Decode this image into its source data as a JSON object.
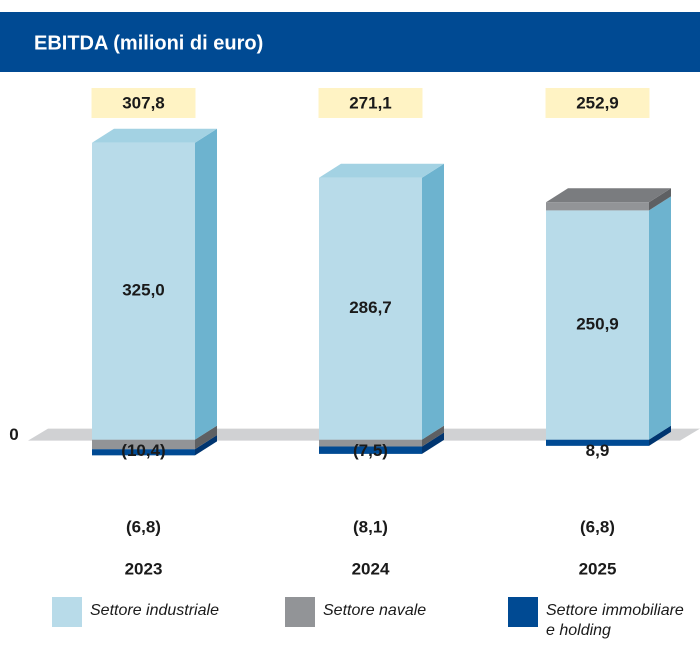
{
  "chart_data": {
    "type": "bar3d_stacked",
    "title": "EBITDA (milioni di euro)",
    "categories": [
      "2023",
      "2024",
      "2025"
    ],
    "series": [
      {
        "name": "Settore industriale",
        "color": "#b8dbe9",
        "side_color": "#6db3cf",
        "top_color": "#a3d2e3",
        "values": [
          325.0,
          286.7,
          250.9
        ],
        "value_labels": [
          "325,0",
          "286,7",
          "250,9"
        ]
      },
      {
        "name": "Settore navale",
        "color": "#929497",
        "side_color": "#5e6063",
        "top_color": "#7a7c7f",
        "values": [
          -10.4,
          -7.5,
          8.9
        ],
        "value_labels": [
          "(10,4)",
          "(7,5)",
          "8,9"
        ]
      },
      {
        "name": "Settore immobiliare e holding",
        "color": "#004a93",
        "side_color": "#003570",
        "top_color": "#0a5aa8",
        "values": [
          -6.8,
          -8.1,
          -6.8
        ],
        "value_labels": [
          "(6,8)",
          "(8,1)",
          "(6,8)"
        ]
      }
    ],
    "totals": [
      307.8,
      271.1,
      252.9
    ],
    "total_labels": [
      "307,8",
      "271,1",
      "252,9"
    ],
    "ylim": [
      -100,
      340
    ],
    "yticks": [
      0
    ]
  }
}
